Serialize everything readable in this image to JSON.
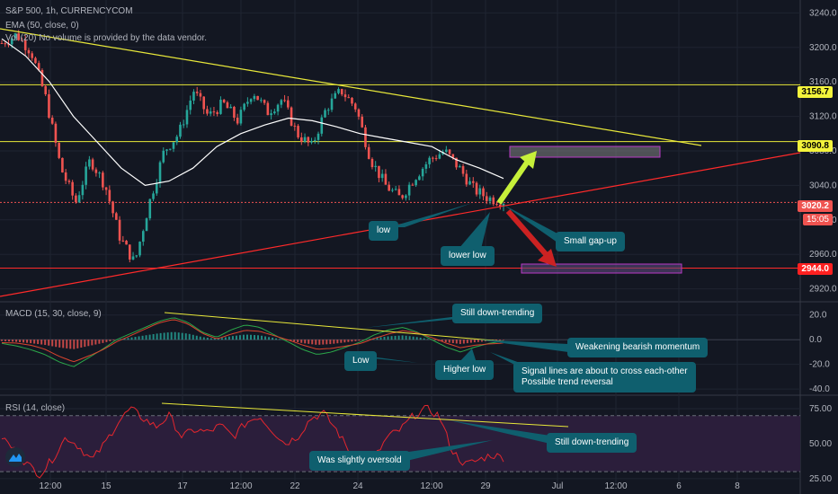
{
  "header": {
    "symbol": "S&P 500, 1h, CURRENCYCOM",
    "ema": "EMA (50, close, 0)",
    "volume": "Vol (20)  No volume is provided by the data vendor."
  },
  "macd_legend": "MACD (15, 30, close, 9)",
  "rsi_legend": "RSI (14, close)",
  "price_tags": {
    "upper": "3156.7",
    "resistance": "3090.8",
    "current": "3020.2",
    "countdown": "15:05",
    "support": "2944.0"
  },
  "callouts": {
    "low": "low",
    "lower_low": "lower low",
    "gap": "Small gap-up",
    "macd_trend": "Still down-trending",
    "macd_weak": "Weakening bearish momentum",
    "macd_low": "Low",
    "macd_higher_low": "Higher low",
    "macd_signal_1": "Signal lines are about to cross each-other",
    "macd_signal_2": "Possible trend reversal",
    "rsi_trend": "Still down-trending",
    "rsi_oversold": "Was slightly oversold"
  },
  "colors": {
    "bull": "#26a69a",
    "bear": "#ef5350",
    "trend": "#e8e83a",
    "support": "#ff2a2a",
    "ema": "#ffffff",
    "rsi": "#e5262e",
    "callout": "#0f5f6e",
    "arrow_up": "#c6f03a",
    "arrow_down": "#cc2222",
    "box": "#b83ac6"
  },
  "chart_data": [
    {
      "type": "candlestick",
      "title": "S&P 500, 1h, CURRENCYCOM",
      "x_ticks": [
        "12:00",
        "15",
        "17",
        "12:00",
        "22",
        "24",
        "12:00",
        "29",
        "Jul",
        "12:00",
        "6",
        "8"
      ],
      "y_ticks": [
        2920.0,
        2960.0,
        3000.0,
        3040.0,
        3080.0,
        3120.0,
        3160.0,
        3200.0,
        3240.0
      ],
      "ylim": [
        2905,
        3255
      ],
      "price_path": [
        3205,
        3215,
        3195,
        3140,
        3060,
        3020,
        3070,
        3040,
        2980,
        2950,
        3020,
        3080,
        3100,
        3150,
        3120,
        3135,
        3115,
        3150,
        3125,
        3140,
        3100,
        3085,
        3130,
        3150,
        3130,
        3070,
        3040,
        3025,
        3050,
        3070,
        3080,
        3060,
        3035,
        3025,
        3022
      ],
      "horizontal_levels": [
        3156.7,
        3090.8,
        3020.2,
        2944.0
      ],
      "series": [
        {
          "name": "EMA (50, close, 0)",
          "values": [
            3210,
            3190,
            3160,
            3120,
            3090,
            3060,
            3040,
            3045,
            3060,
            3085,
            3100,
            3110,
            3118,
            3115,
            3108,
            3100,
            3095,
            3090,
            3085,
            3070,
            3060,
            3048
          ]
        }
      ],
      "annotations": [
        "low",
        "lower low",
        "Small gap-up"
      ]
    },
    {
      "type": "bar",
      "title": "MACD (15, 30, close, 9)",
      "y_ticks": [
        20.0,
        0.0,
        -20.0,
        -40.0
      ],
      "ylim": [
        -45,
        30
      ],
      "values": [
        -3,
        -5,
        -8,
        -12,
        -18,
        -22,
        -15,
        -8,
        0,
        5,
        10,
        15,
        18,
        14,
        6,
        2,
        8,
        12,
        10,
        4,
        -2,
        -8,
        -12,
        -10,
        -6,
        -2,
        4,
        8,
        10,
        6,
        0,
        -6,
        -10,
        -6,
        -3,
        -1
      ],
      "annotations": [
        "Still down-trending",
        "Weakening bearish momentum",
        "Low",
        "Higher low",
        "Signal lines are about to cross each-other",
        "Possible trend reversal"
      ]
    },
    {
      "type": "line",
      "title": "RSI (14, close)",
      "y_ticks": [
        75.0,
        50.0,
        25.0
      ],
      "ylim": [
        14,
        84
      ],
      "values": [
        55,
        45,
        35,
        28,
        40,
        55,
        48,
        38,
        50,
        65,
        75,
        68,
        62,
        70,
        55,
        60,
        58,
        63,
        55,
        65,
        70,
        60,
        50,
        55,
        68,
        72,
        60,
        45,
        35,
        40,
        55,
        60,
        70,
        75,
        70,
        45,
        35,
        38,
        42,
        40
      ],
      "annotations": [
        "Still down-trending",
        "Was slightly oversold"
      ]
    }
  ]
}
